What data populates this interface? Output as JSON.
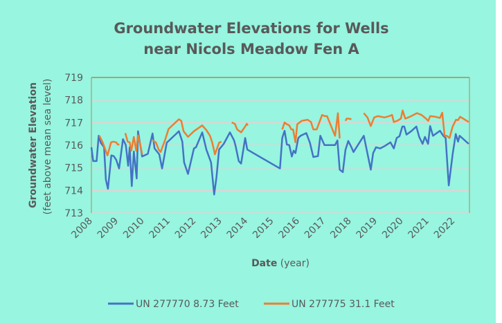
{
  "chart_data": {
    "type": "line",
    "title": [
      "Groundwater Elevations for Wells",
      "near Nicols Meadow Fen A"
    ],
    "xlabel_bold": "Date",
    "xlabel_rest": " (year)",
    "ylabel_bold": "Groundwater Elevation",
    "ylabel_rest": "(feet above mean sea level)",
    "xlim": [
      2008,
      2022.6
    ],
    "ylim": [
      713,
      719
    ],
    "yticks": [
      713,
      714,
      715,
      716,
      717,
      718,
      719
    ],
    "xticks": [
      2008,
      2009,
      2010,
      2011,
      2012,
      2013,
      2014,
      2015,
      2016,
      2017,
      2018,
      2019,
      2020,
      2021,
      2022
    ],
    "grid": true,
    "legend_position": "bottom",
    "series": [
      {
        "name": "UN 277770 8.73 Feet",
        "color": "#4472c4",
        "points": [
          [
            2008.0,
            715.91
          ],
          [
            2008.07,
            715.3
          ],
          [
            2008.2,
            715.3
          ],
          [
            2008.28,
            716.42
          ],
          [
            2008.36,
            716.11
          ],
          [
            2008.49,
            715.91
          ],
          [
            2008.56,
            714.48
          ],
          [
            2008.64,
            714.07
          ],
          [
            2008.77,
            715.55
          ],
          [
            2008.86,
            715.52
          ],
          [
            2008.96,
            715.35
          ],
          [
            2009.07,
            714.97
          ],
          [
            2009.22,
            716.27
          ],
          [
            2009.33,
            716.01
          ],
          [
            2009.42,
            715.09
          ],
          [
            2009.48,
            715.91
          ],
          [
            2009.56,
            714.19
          ],
          [
            2009.64,
            715.72
          ],
          [
            2009.75,
            714.53
          ],
          [
            2009.8,
            716.62
          ],
          [
            2009.96,
            715.5
          ],
          [
            2010.18,
            715.62
          ],
          [
            2010.36,
            716.52
          ],
          [
            2010.44,
            715.86
          ],
          [
            2010.62,
            715.6
          ],
          [
            2010.73,
            714.97
          ],
          [
            2010.91,
            716.11
          ],
          [
            2011.38,
            716.62
          ],
          [
            2011.51,
            716.16
          ],
          [
            2011.58,
            715.24
          ],
          [
            2011.73,
            714.73
          ],
          [
            2011.96,
            715.86
          ],
          [
            2012.04,
            715.91
          ],
          [
            2012.28,
            716.57
          ],
          [
            2012.44,
            715.81
          ],
          [
            2012.62,
            715.24
          ],
          [
            2012.74,
            713.82
          ],
          [
            2012.83,
            714.58
          ],
          [
            2012.93,
            715.81
          ],
          [
            2013.11,
            716.06
          ],
          [
            2013.35,
            716.57
          ],
          [
            2013.51,
            716.21
          ],
          [
            2013.57,
            715.96
          ],
          [
            2013.69,
            715.3
          ],
          [
            2013.78,
            715.19
          ],
          [
            2013.94,
            716.32
          ],
          [
            2014.02,
            715.81
          ],
          [
            2015.28,
            714.97
          ],
          [
            2015.37,
            716.32
          ],
          [
            2015.46,
            716.64
          ],
          [
            2015.55,
            716.03
          ],
          [
            2015.64,
            716.01
          ],
          [
            2015.74,
            715.5
          ],
          [
            2015.81,
            715.76
          ],
          [
            2015.88,
            715.65
          ],
          [
            2015.99,
            716.32
          ],
          [
            2016.08,
            716.42
          ],
          [
            2016.3,
            716.54
          ],
          [
            2016.44,
            716.11
          ],
          [
            2016.57,
            715.48
          ],
          [
            2016.75,
            715.52
          ],
          [
            2016.84,
            716.42
          ],
          [
            2017.0,
            716.01
          ],
          [
            2017.41,
            716.01
          ],
          [
            2017.5,
            716.21
          ],
          [
            2017.59,
            714.92
          ],
          [
            2017.71,
            714.81
          ],
          [
            2017.81,
            715.79
          ],
          [
            2017.92,
            716.19
          ],
          [
            2018.04,
            715.91
          ],
          [
            2018.12,
            715.7
          ],
          [
            2018.52,
            716.42
          ],
          [
            2018.79,
            714.92
          ],
          [
            2018.88,
            715.65
          ],
          [
            2018.99,
            715.91
          ],
          [
            2019.15,
            715.86
          ],
          [
            2019.32,
            715.96
          ],
          [
            2019.55,
            716.13
          ],
          [
            2019.68,
            715.86
          ],
          [
            2019.79,
            716.32
          ],
          [
            2019.9,
            716.4
          ],
          [
            2020.01,
            716.83
          ],
          [
            2020.08,
            716.83
          ],
          [
            2020.17,
            716.47
          ],
          [
            2020.35,
            716.62
          ],
          [
            2020.55,
            716.83
          ],
          [
            2020.66,
            716.37
          ],
          [
            2020.79,
            716.06
          ],
          [
            2020.88,
            716.37
          ],
          [
            2021.0,
            716.06
          ],
          [
            2021.08,
            716.85
          ],
          [
            2021.19,
            716.42
          ],
          [
            2021.46,
            716.64
          ],
          [
            2021.59,
            716.42
          ],
          [
            2021.68,
            716.32
          ],
          [
            2021.8,
            714.22
          ],
          [
            2021.95,
            715.6
          ],
          [
            2022.07,
            716.5
          ],
          [
            2022.16,
            716.16
          ],
          [
            2022.22,
            716.42
          ],
          [
            2022.57,
            716.06
          ]
        ]
      },
      {
        "name": "UN 277775 31.1 Feet",
        "color": "#ed7d31",
        "points": [
          [
            2008.31,
            716.42
          ],
          [
            2008.44,
            716.11
          ],
          [
            2008.62,
            715.55
          ],
          [
            2008.76,
            716.13
          ],
          [
            2008.84,
            716.16
          ],
          [
            2008.96,
            716.13
          ],
          [
            2009.02,
            716.03
          ],
          [
            2009.08,
            716.03
          ],
          null,
          [
            2009.31,
            716.54
          ],
          [
            2009.4,
            716.16
          ],
          [
            2009.48,
            716.13
          ],
          [
            2009.54,
            715.76
          ],
          [
            2009.64,
            716.37
          ],
          [
            2009.73,
            715.76
          ],
          [
            2009.8,
            716.44
          ],
          [
            2009.89,
            716.01
          ],
          [
            2009.96,
            715.6
          ],
          null,
          [
            2010.36,
            716.21
          ],
          [
            2010.49,
            716.13
          ],
          [
            2010.6,
            715.81
          ],
          [
            2010.67,
            715.7
          ],
          [
            2010.84,
            716.21
          ],
          [
            2010.98,
            716.72
          ],
          [
            2011.38,
            717.15
          ],
          [
            2011.47,
            717.08
          ],
          [
            2011.56,
            716.62
          ],
          [
            2011.73,
            716.37
          ],
          [
            2011.96,
            716.62
          ],
          [
            2012.28,
            716.88
          ],
          [
            2012.44,
            716.67
          ],
          [
            2012.58,
            716.42
          ],
          [
            2012.67,
            716.11
          ],
          [
            2012.77,
            715.6
          ],
          [
            2012.87,
            715.91
          ],
          [
            2012.93,
            716.11
          ],
          [
            2013.02,
            716.16
          ],
          null,
          [
            2013.42,
            717.01
          ],
          [
            2013.54,
            716.95
          ],
          [
            2013.63,
            716.7
          ],
          [
            2013.78,
            716.57
          ],
          [
            2013.91,
            716.78
          ],
          [
            2014.0,
            716.95
          ],
          [
            2014.04,
            716.88
          ],
          null,
          [
            2015.37,
            716.7
          ],
          [
            2015.46,
            717.01
          ],
          [
            2015.55,
            716.93
          ],
          [
            2015.64,
            716.88
          ],
          [
            2015.72,
            716.7
          ],
          [
            2015.79,
            716.7
          ],
          [
            2015.88,
            716.13
          ],
          [
            2015.95,
            716.93
          ],
          [
            2016.12,
            717.08
          ],
          [
            2016.35,
            717.13
          ],
          [
            2016.48,
            717.03
          ],
          [
            2016.57,
            716.7
          ],
          [
            2016.7,
            716.7
          ],
          [
            2016.91,
            717.34
          ],
          [
            2017.01,
            717.29
          ],
          [
            2017.1,
            717.29
          ],
          [
            2017.41,
            716.42
          ],
          [
            2017.52,
            717.42
          ],
          [
            2017.59,
            716.3
          ],
          null,
          [
            2017.81,
            717.08
          ],
          [
            2017.86,
            717.18
          ],
          [
            2017.94,
            717.18
          ],
          [
            2018.04,
            717.15
          ],
          null,
          [
            2018.52,
            717.42
          ],
          [
            2018.66,
            717.23
          ],
          [
            2018.79,
            716.85
          ],
          [
            2018.92,
            717.23
          ],
          [
            2019.06,
            717.29
          ],
          [
            2019.32,
            717.23
          ],
          [
            2019.5,
            717.29
          ],
          [
            2019.61,
            717.34
          ],
          [
            2019.68,
            717.03
          ],
          [
            2019.81,
            717.08
          ],
          [
            2019.95,
            717.18
          ],
          [
            2020.02,
            717.54
          ],
          [
            2020.12,
            717.18
          ],
          [
            2020.3,
            717.26
          ],
          [
            2020.57,
            717.42
          ],
          [
            2020.75,
            717.34
          ],
          [
            2020.92,
            717.18
          ],
          [
            2021.01,
            717.08
          ],
          [
            2021.08,
            717.29
          ],
          [
            2021.28,
            717.26
          ],
          [
            2021.46,
            717.21
          ],
          [
            2021.55,
            717.44
          ],
          [
            2021.64,
            716.42
          ],
          [
            2021.72,
            716.42
          ],
          [
            2021.83,
            716.32
          ],
          [
            2021.95,
            716.83
          ],
          [
            2022.08,
            717.13
          ],
          [
            2022.16,
            717.11
          ],
          [
            2022.24,
            717.26
          ],
          [
            2022.4,
            717.15
          ],
          [
            2022.57,
            717.03
          ]
        ]
      }
    ]
  },
  "colors": {
    "background": "#97f5e0",
    "grid": "#e9cfd0",
    "axis": "#a89048",
    "text": "#595959"
  }
}
